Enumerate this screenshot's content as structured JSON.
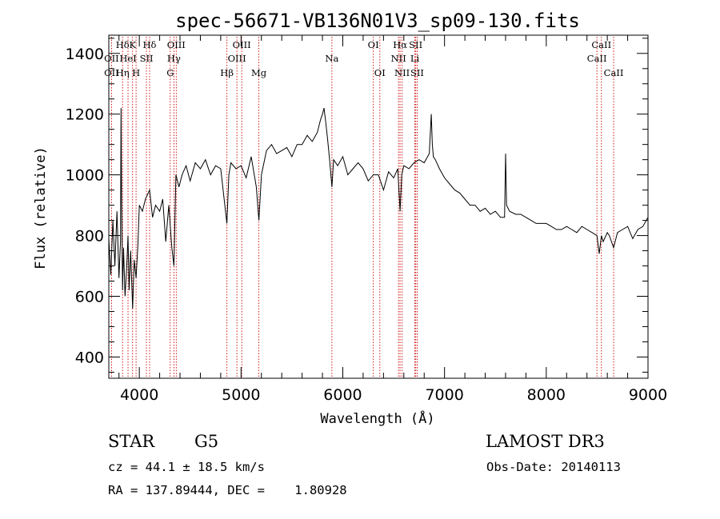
{
  "chart_data": {
    "type": "line",
    "title": "spec-56671-VB136N01V3_sp09-130.fits",
    "xlabel": "Wavelength (Å)",
    "ylabel": "Flux (relative)",
    "xlim": [
      3700,
      9000
    ],
    "ylim": [
      330,
      1460
    ],
    "x_ticks": [
      4000,
      5000,
      6000,
      7000,
      8000,
      9000
    ],
    "x_tick_labels": [
      "4000",
      "5000",
      "6000",
      "7000",
      "8000",
      "9000"
    ],
    "y_ticks": [
      400,
      600,
      800,
      1000,
      1200,
      1400
    ],
    "y_tick_labels": [
      "400",
      "600",
      "800",
      "1000",
      "1200",
      "1400"
    ],
    "series": [
      {
        "name": "flux",
        "color": "#000000",
        "x": [
          3700,
          3720,
          3740,
          3760,
          3780,
          3800,
          3815,
          3820,
          3826,
          3835,
          3845,
          3860,
          3875,
          3889,
          3900,
          3915,
          3934,
          3950,
          3968,
          3985,
          4000,
          4030,
          4060,
          4101,
          4130,
          4160,
          4200,
          4230,
          4260,
          4290,
          4320,
          4340,
          4360,
          4390,
          4420,
          4460,
          4500,
          4550,
          4600,
          4650,
          4700,
          4750,
          4800,
          4861,
          4880,
          4900,
          4950,
          5000,
          5050,
          5100,
          5150,
          5175,
          5200,
          5250,
          5300,
          5350,
          5400,
          5450,
          5500,
          5550,
          5600,
          5650,
          5700,
          5750,
          5780,
          5800,
          5815,
          5830,
          5850,
          5870,
          5893,
          5910,
          5950,
          6000,
          6050,
          6100,
          6150,
          6200,
          6250,
          6300,
          6350,
          6400,
          6450,
          6500,
          6540,
          6563,
          6580,
          6600,
          6650,
          6700,
          6750,
          6800,
          6850,
          6870,
          6880,
          6890,
          6910,
          6950,
          7000,
          7050,
          7100,
          7150,
          7200,
          7250,
          7300,
          7350,
          7400,
          7450,
          7500,
          7550,
          7590,
          7600,
          7610,
          7640,
          7700,
          7750,
          7800,
          7850,
          7900,
          7950,
          8000,
          8050,
          8100,
          8150,
          8200,
          8250,
          8300,
          8350,
          8400,
          8450,
          8498,
          8520,
          8542,
          8560,
          8600,
          8620,
          8662,
          8700,
          8750,
          8800,
          8850,
          8900,
          8950,
          9000
        ],
        "values": [
          790,
          670,
          850,
          700,
          880,
          660,
          780,
          1220,
          920,
          620,
          760,
          600,
          690,
          800,
          620,
          750,
          560,
          720,
          660,
          760,
          900,
          880,
          920,
          950,
          860,
          900,
          880,
          920,
          780,
          900,
          760,
          700,
          1000,
          960,
          1000,
          1030,
          980,
          1040,
          1020,
          1050,
          1000,
          1030,
          1020,
          840,
          1000,
          1040,
          1020,
          1030,
          990,
          1060,
          960,
          850,
          1000,
          1080,
          1100,
          1070,
          1080,
          1090,
          1060,
          1100,
          1100,
          1130,
          1110,
          1140,
          1180,
          1200,
          1220,
          1180,
          1120,
          1050,
          960,
          1050,
          1030,
          1060,
          1000,
          1020,
          1040,
          1020,
          980,
          1000,
          1000,
          950,
          1010,
          990,
          1020,
          880,
          1000,
          1030,
          1020,
          1040,
          1050,
          1040,
          1070,
          1200,
          1100,
          1060,
          1050,
          1020,
          990,
          970,
          950,
          940,
          920,
          900,
          900,
          880,
          890,
          870,
          880,
          860,
          860,
          1070,
          900,
          880,
          870,
          870,
          860,
          850,
          840,
          840,
          840,
          830,
          820,
          820,
          830,
          820,
          810,
          830,
          820,
          810,
          800,
          740,
          800,
          780,
          810,
          800,
          760,
          810,
          820,
          830,
          790,
          820,
          830,
          860
        ]
      }
    ],
    "emission_lines": [
      {
        "label": "Hδ",
        "x": 3835,
        "row": 0
      },
      {
        "label": "K",
        "x": 3934,
        "row": 0
      },
      {
        "label": "Hδ",
        "x": 4101,
        "row": 0
      },
      {
        "label": "OIII",
        "x": 4363,
        "row": 0
      },
      {
        "label": "OIII",
        "x": 5007,
        "row": 0
      },
      {
        "label": "OI",
        "x": 6300,
        "row": 0
      },
      {
        "label": "Hα",
        "x": 6563,
        "row": 0
      },
      {
        "label": "SII",
        "x": 6717,
        "row": 0
      },
      {
        "label": "CaII",
        "x": 8542,
        "row": 0
      },
      {
        "label": "OII",
        "x": 3727,
        "row": 1
      },
      {
        "label": "HeI",
        "x": 3889,
        "row": 1
      },
      {
        "label": "SII",
        "x": 4070,
        "row": 1
      },
      {
        "label": "Hγ",
        "x": 4340,
        "row": 1
      },
      {
        "label": "OIII",
        "x": 4959,
        "row": 1
      },
      {
        "label": "Na",
        "x": 5893,
        "row": 1
      },
      {
        "label": "NII",
        "x": 6548,
        "row": 1
      },
      {
        "label": "Li",
        "x": 6708,
        "row": 1
      },
      {
        "label": "CaII",
        "x": 8498,
        "row": 1
      },
      {
        "label": "OII",
        "x": 3727,
        "row": 2
      },
      {
        "label": "Hη",
        "x": 3835,
        "row": 2
      },
      {
        "label": "H",
        "x": 3968,
        "row": 2
      },
      {
        "label": "G",
        "x": 4304,
        "row": 2
      },
      {
        "label": "Hβ",
        "x": 4861,
        "row": 2
      },
      {
        "label": "Mg",
        "x": 5175,
        "row": 2
      },
      {
        "label": "OI",
        "x": 6364,
        "row": 2
      },
      {
        "label": "NII",
        "x": 6583,
        "row": 2
      },
      {
        "label": "SII",
        "x": 6731,
        "row": 2
      },
      {
        "label": "CaII",
        "x": 8662,
        "row": 2
      }
    ],
    "line_marker_color": "#cc0000"
  },
  "info": {
    "object_class": "STAR",
    "subclass": "G5",
    "survey": "LAMOST DR3",
    "redshift": "cz = 44.1 ± 18.5 km/s",
    "obs_date": "Obs-Date: 20140113",
    "coords": "RA = 137.89444, DEC =    1.80928"
  }
}
